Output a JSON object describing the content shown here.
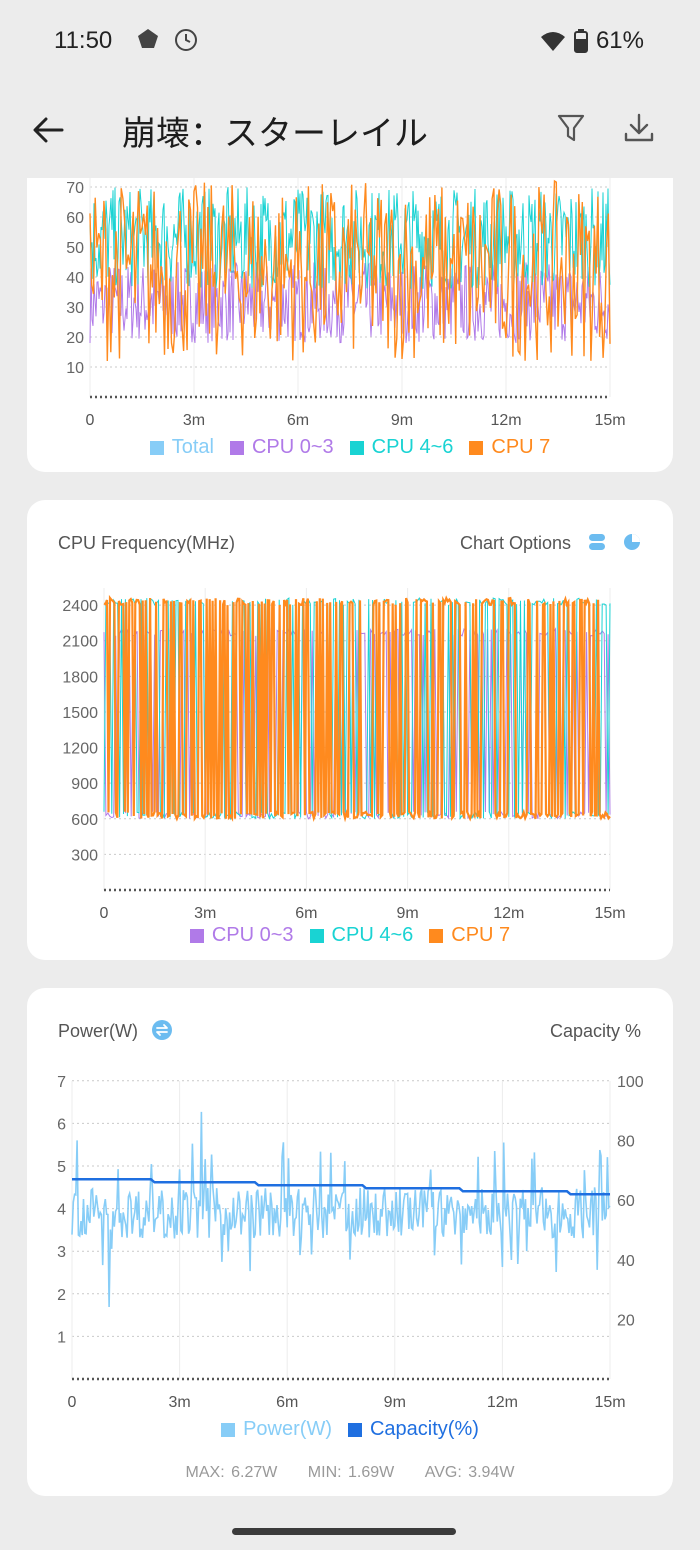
{
  "status_bar": {
    "time": "11:50",
    "battery": "61%"
  },
  "app_bar": {
    "title": "崩壊：スターレイル"
  },
  "cpu_usage_chart": {
    "legend": [
      {
        "label": "Total",
        "color": "#87cdf7"
      },
      {
        "label": "CPU 0~3",
        "color": "#b07ae8"
      },
      {
        "label": "CPU 4~6",
        "color": "#19d3d3"
      },
      {
        "label": "CPU 7",
        "color": "#ff8a1e"
      }
    ],
    "y_ticks": [
      "70",
      "60",
      "50",
      "40",
      "30",
      "20",
      "10"
    ],
    "x_ticks": [
      "0",
      "3m",
      "6m",
      "9m",
      "12m",
      "15m"
    ]
  },
  "cpu_freq_chart": {
    "title": "CPU Frequency(MHz)",
    "options_label": "Chart Options",
    "legend": [
      {
        "label": "CPU 0~3",
        "color": "#b07ae8"
      },
      {
        "label": "CPU 4~6",
        "color": "#19d3d3"
      },
      {
        "label": "CPU 7",
        "color": "#ff8a1e"
      }
    ],
    "y_ticks": [
      "2400",
      "2100",
      "1800",
      "1500",
      "1200",
      "900",
      "600",
      "300"
    ],
    "x_ticks": [
      "0",
      "3m",
      "6m",
      "9m",
      "12m",
      "15m"
    ]
  },
  "power_chart": {
    "title": "Power(W)",
    "right_title": "Capacity %",
    "legend": [
      {
        "label": "Power(W)",
        "color": "#87cdf7"
      },
      {
        "label": "Capacity(%)",
        "color": "#1f6fe0"
      }
    ],
    "y_ticks_left": [
      "7",
      "6",
      "5",
      "4",
      "3",
      "2",
      "1"
    ],
    "y_ticks_right": [
      "100",
      "80",
      "60",
      "40",
      "20"
    ],
    "x_ticks": [
      "0",
      "3m",
      "6m",
      "9m",
      "12m",
      "15m"
    ],
    "stats": {
      "max": "MAX: 6.27W",
      "min": "MIN: 1.69W",
      "avg": "AVG: 3.94W"
    }
  },
  "chart_data": [
    {
      "type": "line",
      "xlabel": "",
      "ylabel": "",
      "x_range_minutes": [
        0,
        15
      ],
      "ylim": [
        0,
        75
      ],
      "series": [
        {
          "name": "Total",
          "approx_level": 45
        },
        {
          "name": "CPU 0~3",
          "approx_range": [
            18,
            45
          ]
        },
        {
          "name": "CPU 4~6",
          "approx_range": [
            35,
            70
          ]
        },
        {
          "name": "CPU 7",
          "approx_range": [
            10,
            72
          ]
        }
      ]
    },
    {
      "type": "line",
      "title": "CPU Frequency(MHz)",
      "x_range_minutes": [
        0,
        15
      ],
      "ylim": [
        0,
        2500
      ],
      "series": [
        {
          "name": "CPU 0~3",
          "approx_range": [
            600,
            2200
          ]
        },
        {
          "name": "CPU 4~6",
          "approx_range": [
            600,
            2460
          ]
        },
        {
          "name": "CPU 7",
          "approx_range": [
            600,
            2460
          ]
        }
      ]
    },
    {
      "type": "line",
      "x_range_minutes": [
        0,
        15
      ],
      "ylim": [
        0,
        7
      ],
      "y2lim": [
        0,
        100
      ],
      "series": [
        {
          "name": "Power(W)",
          "approx_mean": 3.94,
          "max": 6.27,
          "min": 1.69
        },
        {
          "name": "Capacity(%)",
          "x": [
            0,
            2.2,
            2.3,
            5.1,
            5.2,
            8.1,
            8.2,
            10.8,
            10.9,
            13.8,
            13.9,
            15
          ],
          "values": [
            67,
            67,
            66,
            66,
            65,
            65,
            64,
            64,
            63,
            63,
            62,
            62
          ]
        }
      ]
    }
  ]
}
